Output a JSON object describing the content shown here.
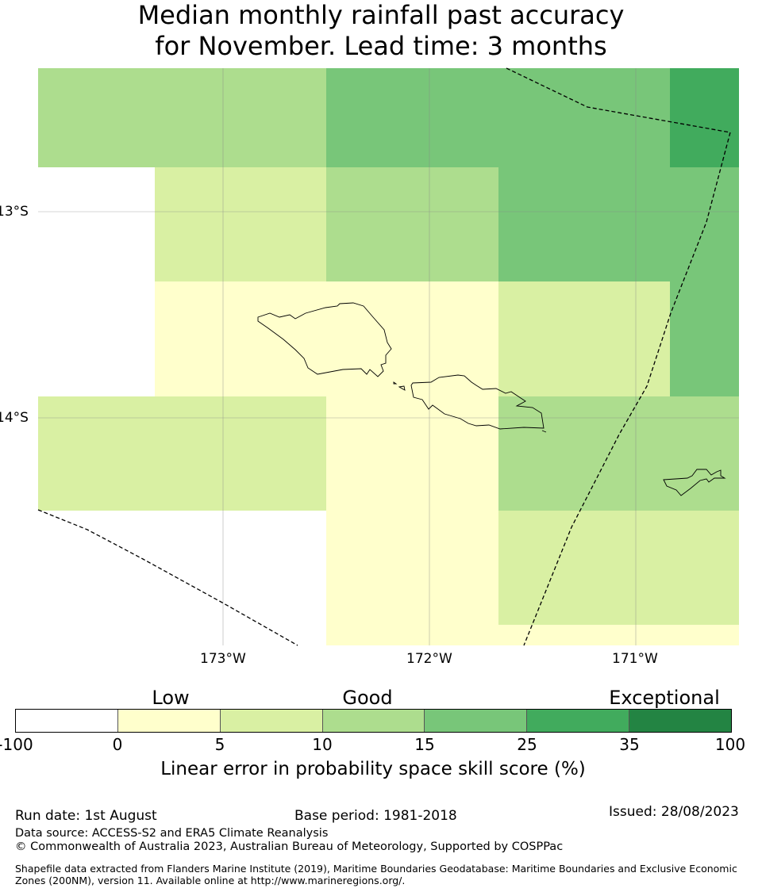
{
  "title_line1": "Median monthly rainfall past accuracy",
  "title_line2": "for November. Lead time: 3 months",
  "map": {
    "lat_labels": [
      "13°S",
      "14°S"
    ],
    "lon_labels": [
      "173°W",
      "172°W",
      "171°W"
    ]
  },
  "legend": {
    "categories": [
      "Low",
      "Good",
      "Exceptional"
    ],
    "ticks": [
      "-100",
      "0",
      "5",
      "10",
      "15",
      "25",
      "35",
      "100"
    ],
    "colors": [
      "#ffffff",
      "#ffffcc",
      "#d9f0a3",
      "#addd8e",
      "#78c679",
      "#41ab5d",
      "#238443"
    ],
    "title": "Linear error in probability space skill score (%)"
  },
  "footer": {
    "run_date": "Run date: 1st August",
    "base_period": "Base period: 1981-2018",
    "issued": "Issued: 28/08/2023",
    "data_source": "Data source: ACCESS-S2 and ERA5 Climate Reanalysis",
    "copyright": "© Commonwealth of Australia 2023, Australian Bureau of Meteorology, Supported by COSPPac",
    "shapefile": "Shapefile data extracted from Flanders Marine Institute (2019), Maritime Boundaries Geodatabase: Maritime Boundaries and Exclusive Economic Zones (200NM), version 11. Available online at http://www.marineregions.org/."
  }
}
